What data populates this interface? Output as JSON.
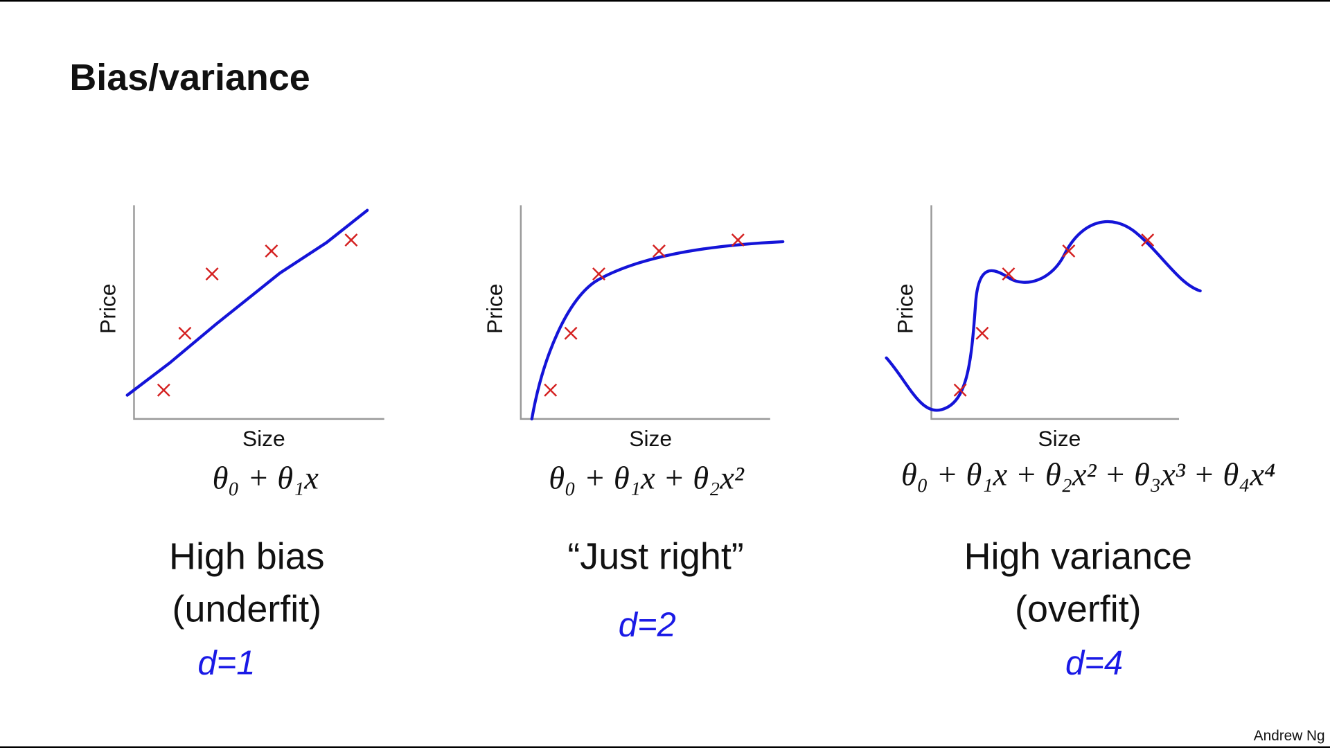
{
  "header": {
    "title": "Bias/variance"
  },
  "panels": [
    {
      "y_label": "Price",
      "x_label": "Size",
      "formula": "θ₀ + θ₁x",
      "caption": [
        "High bias",
        "(underfit)"
      ],
      "note": "d=1"
    },
    {
      "y_label": "Price",
      "x_label": "Size",
      "formula": "θ₀ + θ₁x + θ₂x²",
      "caption": [
        "“Just right”"
      ],
      "note": "d=2"
    },
    {
      "y_label": "Price",
      "x_label": "Size",
      "formula": "θ₀ + θ₁x + θ₂x² + θ₃x³ + θ₄x⁴",
      "caption": [
        "High variance",
        "(overfit)"
      ],
      "note": "d=4"
    }
  ],
  "footer": {
    "author": "Andrew Ng"
  }
}
